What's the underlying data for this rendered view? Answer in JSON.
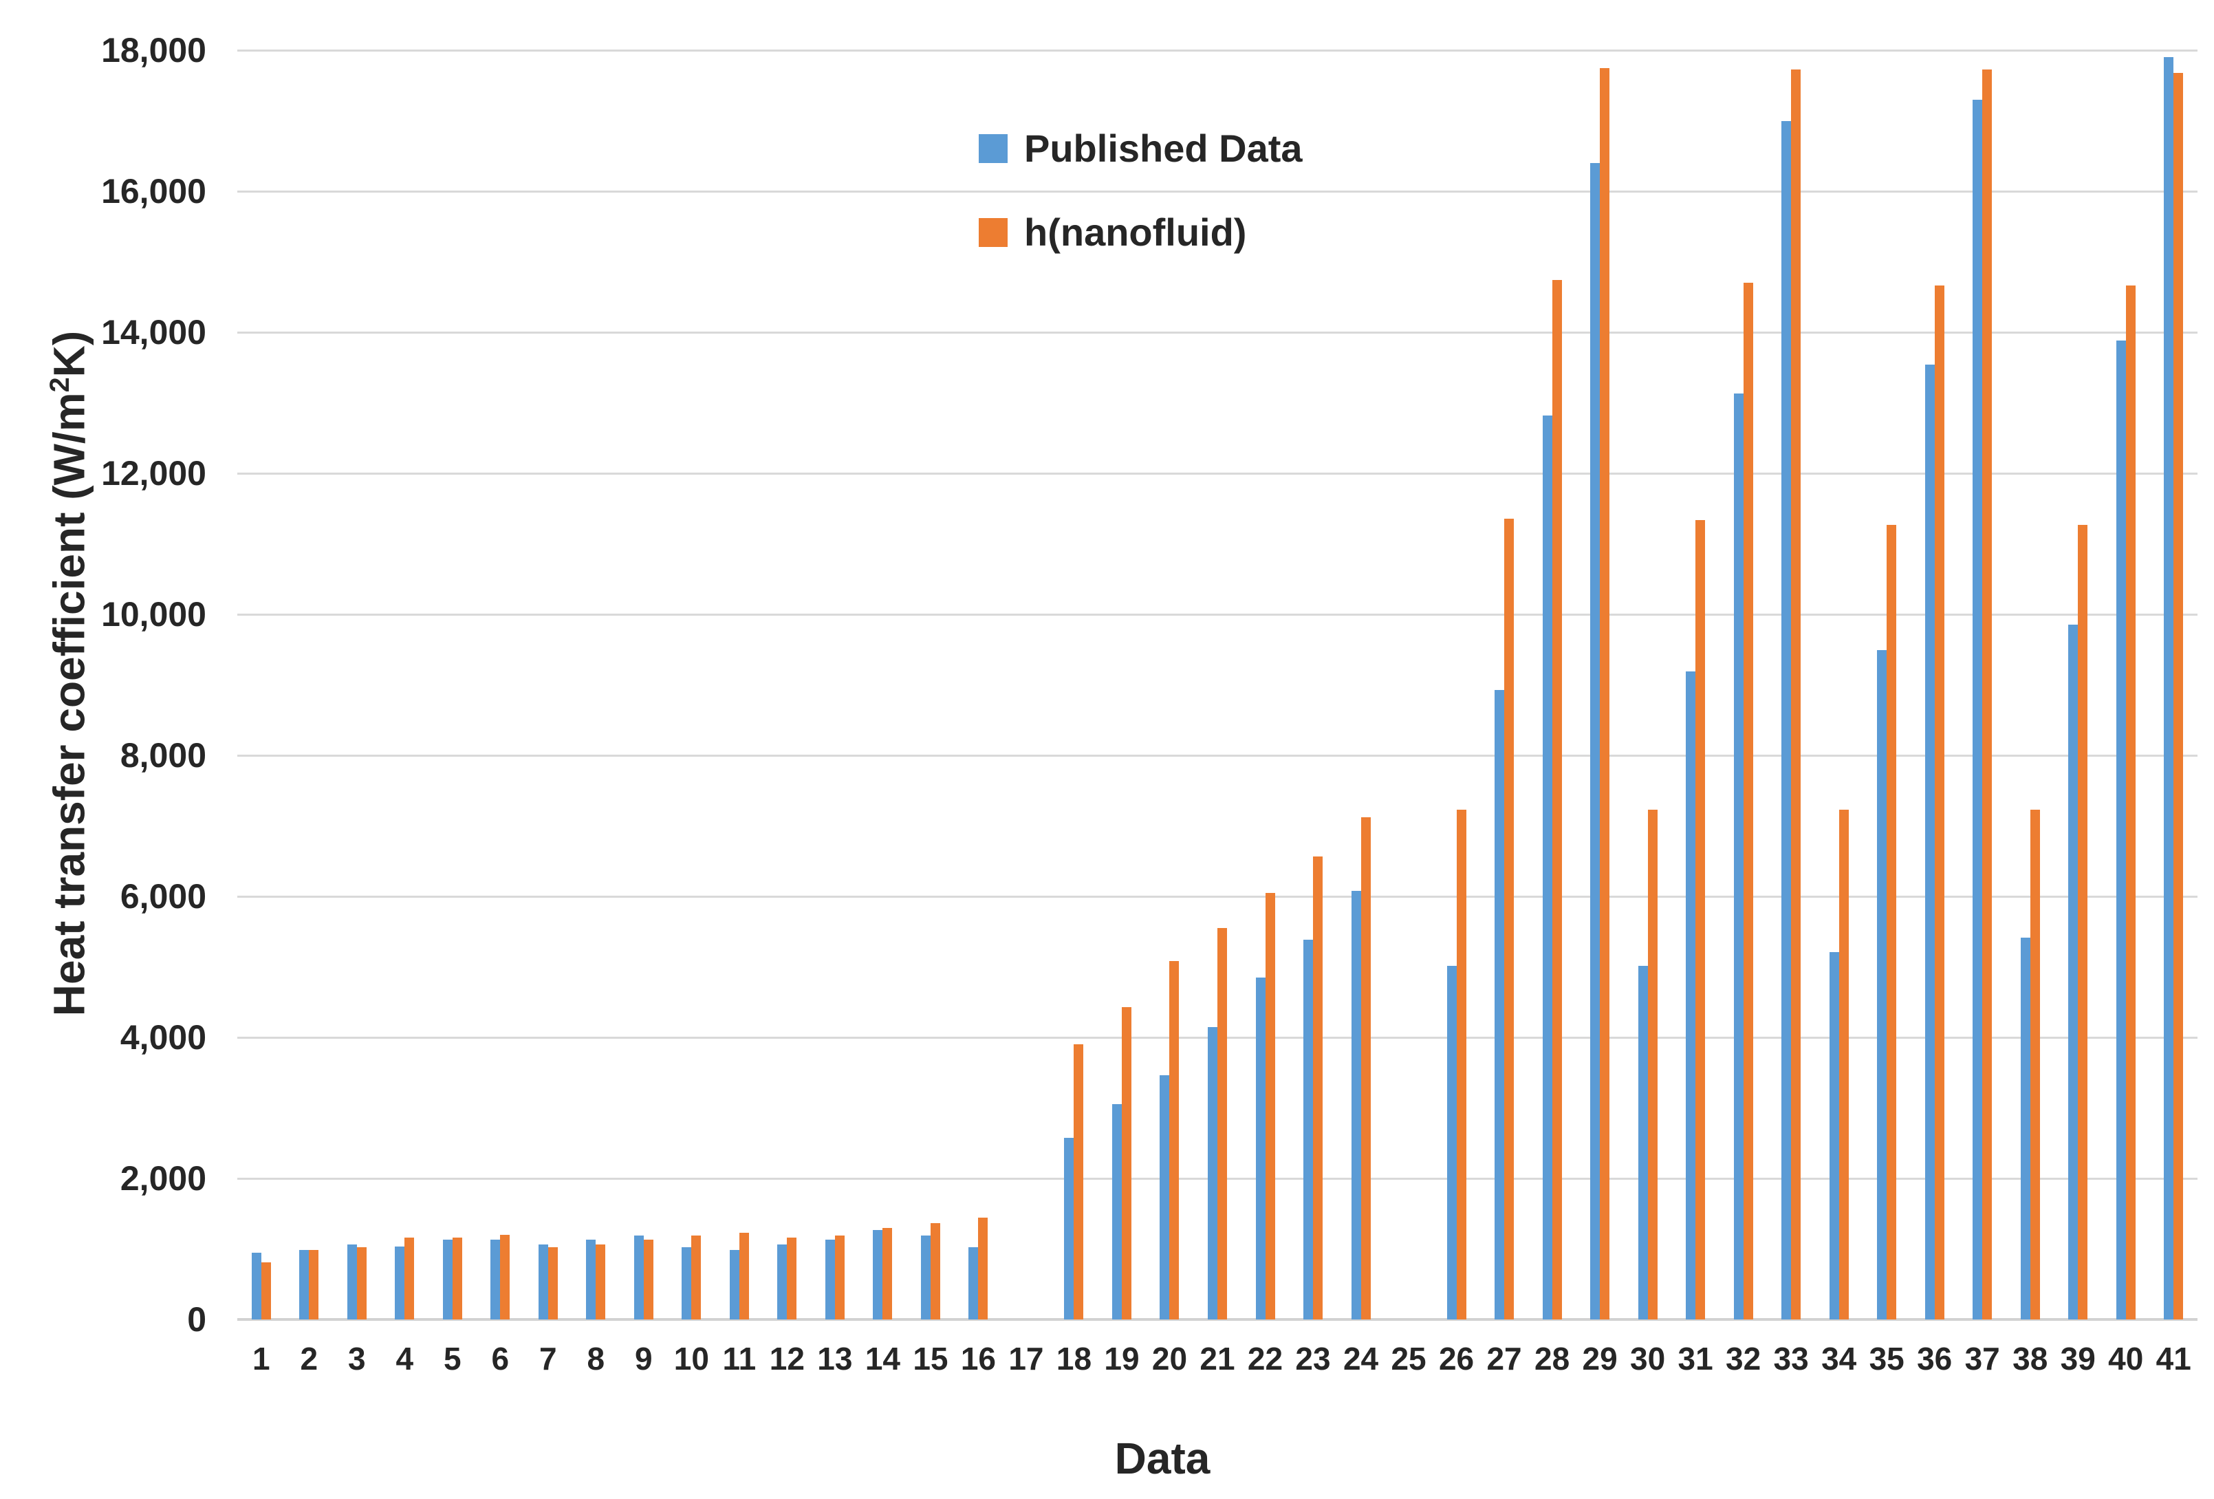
{
  "chart_data": {
    "type": "bar",
    "title": "",
    "xlabel": "Data",
    "ylabel": "Heat transfer coefficient (W/m²K)",
    "ylim": [
      0,
      18000
    ],
    "ytick_step": 2000,
    "ytick_labels": [
      "0",
      "2,000",
      "4,000",
      "6,000",
      "8,000",
      "10,000",
      "12,000",
      "14,000",
      "16,000",
      "18,000"
    ],
    "grid": true,
    "legend_position": "inside-top-left",
    "categories": [
      "1",
      "2",
      "3",
      "4",
      "5",
      "6",
      "7",
      "8",
      "9",
      "10",
      "11",
      "12",
      "13",
      "14",
      "15",
      "16",
      "17",
      "18",
      "19",
      "20",
      "21",
      "22",
      "23",
      "24",
      "25",
      "26",
      "27",
      "28",
      "29",
      "30",
      "31",
      "32",
      "33",
      "34",
      "35",
      "36",
      "37",
      "38",
      "39",
      "40",
      "41"
    ],
    "series": [
      {
        "name": "Published Data",
        "color": "#5B9BD5",
        "values": [
          950,
          990,
          1060,
          1030,
          1130,
          1130,
          1060,
          1130,
          1190,
          1020,
          990,
          1060,
          1130,
          1270,
          1190,
          1020,
          0,
          2580,
          3050,
          3460,
          4150,
          4850,
          5390,
          6080,
          0,
          5010,
          8930,
          12820,
          16400,
          5010,
          9190,
          13130,
          17000,
          5210,
          9490,
          13540,
          17300,
          5410,
          9850,
          13880,
          17900
        ]
      },
      {
        "name": "h(nanofluid)",
        "color": "#ED7D31",
        "values": [
          810,
          990,
          1020,
          1160,
          1160,
          1200,
          1020,
          1060,
          1130,
          1190,
          1230,
          1160,
          1190,
          1300,
          1370,
          1440,
          0,
          3900,
          4430,
          5080,
          5550,
          6050,
          6570,
          7120,
          0,
          7230,
          11360,
          14740,
          17750,
          7230,
          11340,
          14700,
          17730,
          7230,
          11270,
          14660,
          17730,
          7230,
          11270,
          14660,
          17680
        ]
      }
    ],
    "styles": {
      "gridline_color": "#D9D9D9",
      "axis_line_color": "#D2D2D2",
      "text_color": "#262626",
      "background": "#FFFFFF"
    }
  }
}
